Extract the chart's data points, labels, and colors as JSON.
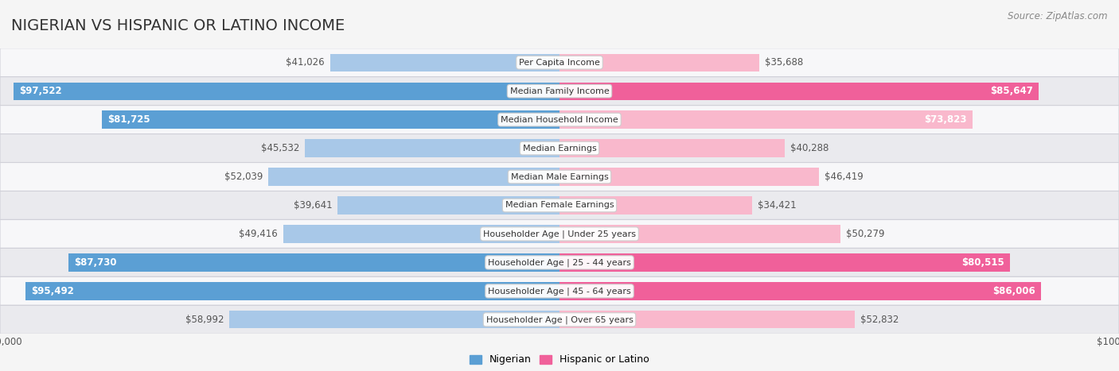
{
  "title": "NIGERIAN VS HISPANIC OR LATINO INCOME",
  "source": "Source: ZipAtlas.com",
  "max_value": 100000,
  "categories": [
    "Per Capita Income",
    "Median Family Income",
    "Median Household Income",
    "Median Earnings",
    "Median Male Earnings",
    "Median Female Earnings",
    "Householder Age | Under 25 years",
    "Householder Age | 25 - 44 years",
    "Householder Age | 45 - 64 years",
    "Householder Age | Over 65 years"
  ],
  "nigerian_values": [
    41026,
    97522,
    81725,
    45532,
    52039,
    39641,
    49416,
    87730,
    95492,
    58992
  ],
  "hispanic_values": [
    35688,
    85647,
    73823,
    40288,
    46419,
    34421,
    50279,
    80515,
    86006,
    52832
  ],
  "nigerian_labels": [
    "$41,026",
    "$97,522",
    "$81,725",
    "$45,532",
    "$52,039",
    "$39,641",
    "$49,416",
    "$87,730",
    "$95,492",
    "$58,992"
  ],
  "hispanic_labels": [
    "$35,688",
    "$85,647",
    "$73,823",
    "$40,288",
    "$46,419",
    "$34,421",
    "$50,279",
    "$80,515",
    "$86,006",
    "$52,832"
  ],
  "nig_inside_threshold": 60000,
  "hisp_inside_threshold": 60000,
  "nig_color_light": "#a8c8e8",
  "nig_color_dark": "#5b9fd4",
  "hisp_color_light": "#f9b8cc",
  "hisp_color_dark": "#f0609a",
  "row_colors": [
    "#f7f7f9",
    "#eaeaee"
  ],
  "bg_color": "#f5f5f5",
  "label_inside_color": "#ffffff",
  "label_outside_color": "#555555",
  "title_fontsize": 14,
  "source_fontsize": 8.5,
  "bar_label_fontsize": 8.5,
  "category_fontsize": 8,
  "legend_fontsize": 9,
  "axis_label_fontsize": 8.5
}
